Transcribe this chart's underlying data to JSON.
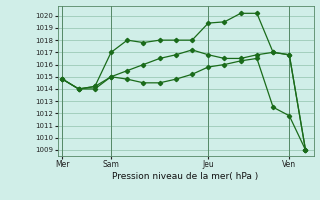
{
  "title": "Pression niveau de la mer( hPa )",
  "bg_color": "#d0eee8",
  "grid_color": "#a0ccbb",
  "line_color": "#1a6b1a",
  "vline_color": "#558866",
  "ylim": [
    1008.5,
    1020.8
  ],
  "yticks": [
    1009,
    1010,
    1011,
    1012,
    1013,
    1014,
    1015,
    1016,
    1017,
    1018,
    1019,
    1020
  ],
  "day_labels": [
    "Mer",
    "Sam",
    "Jeu",
    "Ven"
  ],
  "day_positions": [
    0,
    3,
    9,
    14
  ],
  "series1_x": [
    0,
    1,
    2,
    3,
    4,
    5,
    6,
    7,
    8,
    9,
    10,
    11,
    12,
    13,
    14,
    15
  ],
  "series1_y": [
    1014.8,
    1014.0,
    1014.0,
    1015.0,
    1015.5,
    1016.0,
    1016.5,
    1016.8,
    1017.2,
    1016.8,
    1016.5,
    1016.5,
    1016.8,
    1017.0,
    1016.8,
    1009.0
  ],
  "series2_x": [
    0,
    1,
    2,
    3,
    4,
    5,
    6,
    7,
    8,
    9,
    10,
    11,
    12,
    13,
    14,
    15
  ],
  "series2_y": [
    1014.8,
    1014.0,
    1014.2,
    1017.0,
    1018.0,
    1017.8,
    1018.0,
    1018.0,
    1018.0,
    1019.4,
    1019.5,
    1020.2,
    1020.2,
    1017.0,
    1016.8,
    1009.0
  ],
  "series3_x": [
    0,
    1,
    2,
    3,
    4,
    5,
    6,
    7,
    8,
    9,
    10,
    11,
    12,
    13,
    14,
    15
  ],
  "series3_y": [
    1014.8,
    1014.0,
    1014.2,
    1015.0,
    1014.8,
    1014.5,
    1014.5,
    1014.8,
    1015.2,
    1015.8,
    1016.0,
    1016.3,
    1016.5,
    1012.5,
    1011.8,
    1009.0
  ],
  "title_fontsize": 6.5,
  "tick_fontsize": 5.0,
  "xlabel_fontsize": 6.5,
  "marker_size": 2.2,
  "line_width": 0.9
}
